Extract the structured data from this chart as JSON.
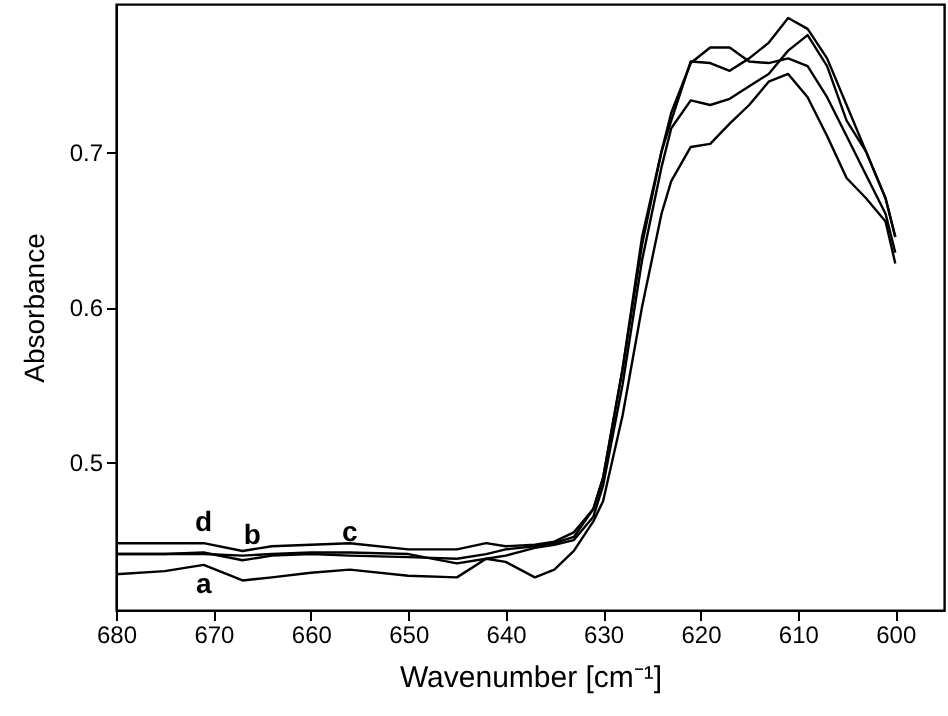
{
  "chart_data": {
    "type": "line",
    "xlabel": "Wavenumber [cm⁻¹]",
    "ylabel": "Absorbance",
    "x": [
      680,
      675,
      671,
      667,
      664,
      660,
      656,
      650,
      645,
      642,
      640,
      637,
      635,
      633,
      631,
      630,
      628,
      626,
      624,
      623,
      621,
      619,
      617,
      615,
      613,
      611,
      609,
      607,
      605,
      603,
      601,
      600
    ],
    "series": [
      {
        "color": "#000000",
        "values": [
          0.428,
          0.43,
          0.434,
          0.424,
          0.426,
          0.429,
          0.431,
          0.427,
          0.426,
          0.438,
          0.436,
          0.426,
          0.431,
          0.443,
          0.462,
          0.475,
          0.53,
          0.6,
          0.66,
          0.681,
          0.703,
          0.705,
          0.718,
          0.73,
          0.745,
          0.75,
          0.735,
          0.71,
          0.683,
          0.67,
          0.655,
          0.628
        ]
      },
      {
        "color": "#000000",
        "values": [
          0.441,
          0.441,
          0.442,
          0.437,
          0.44,
          0.441,
          0.44,
          0.439,
          0.438,
          0.441,
          0.444,
          0.446,
          0.448,
          0.452,
          0.47,
          0.49,
          0.56,
          0.64,
          0.7,
          0.725,
          0.757,
          0.767,
          0.767,
          0.758,
          0.757,
          0.76,
          0.755,
          0.735,
          0.71,
          0.685,
          0.66,
          0.635
        ]
      },
      {
        "color": "#000000",
        "values": [
          0.441,
          0.441,
          0.441,
          0.44,
          0.441,
          0.442,
          0.442,
          0.441,
          0.435,
          0.438,
          0.44,
          0.445,
          0.447,
          0.45,
          0.465,
          0.485,
          0.55,
          0.63,
          0.69,
          0.715,
          0.733,
          0.73,
          0.734,
          0.742,
          0.75,
          0.765,
          0.775,
          0.755,
          0.72,
          0.7,
          0.67,
          0.645
        ]
      },
      {
        "color": "#000000",
        "values": [
          0.448,
          0.448,
          0.448,
          0.443,
          0.446,
          0.447,
          0.448,
          0.444,
          0.444,
          0.448,
          0.446,
          0.447,
          0.449,
          0.455,
          0.47,
          0.49,
          0.56,
          0.645,
          0.7,
          0.72,
          0.758,
          0.757,
          0.752,
          0.76,
          0.77,
          0.786,
          0.779,
          0.76,
          0.73,
          0.7,
          0.67,
          0.645
        ]
      }
    ],
    "annotations": [
      {
        "text": "d",
        "x": 671,
        "y": 0.448
      },
      {
        "text": "b",
        "x": 666,
        "y": 0.44
      },
      {
        "text": "c",
        "x": 656,
        "y": 0.442
      },
      {
        "text": "a",
        "x": 671,
        "y": 0.434
      }
    ],
    "xlim": [
      680,
      595
    ],
    "xticks": [
      680,
      670,
      660,
      650,
      640,
      630,
      620,
      610,
      600
    ],
    "ylim": [
      0.405,
      0.795
    ],
    "yticks": [
      0.5,
      0.6,
      0.7
    ],
    "line_style": "solid"
  }
}
